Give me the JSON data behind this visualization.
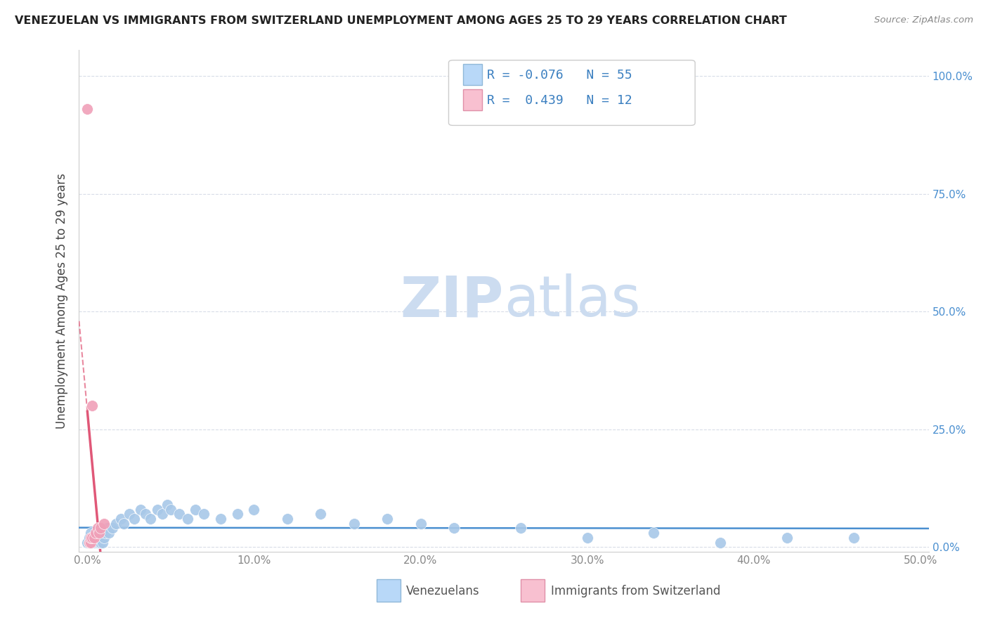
{
  "title": "VENEZUELAN VS IMMIGRANTS FROM SWITZERLAND UNEMPLOYMENT AMONG AGES 25 TO 29 YEARS CORRELATION CHART",
  "source": "Source: ZipAtlas.com",
  "ylabel": "Unemployment Among Ages 25 to 29 years",
  "xlim": [
    0.0,
    0.5
  ],
  "ylim": [
    0.0,
    1.05
  ],
  "blue_R": -0.076,
  "blue_N": 55,
  "pink_R": 0.439,
  "pink_N": 12,
  "blue_color": "#a8c8e8",
  "pink_color": "#f0a0b8",
  "blue_line_color": "#4a8fd0",
  "pink_line_color": "#e05878",
  "legend_box_blue": "#b8d8f8",
  "legend_box_pink": "#f8c0d0",
  "watermark_color": "#ccdcf0",
  "grid_color": "#d8dde8",
  "tick_color": "#888888",
  "right_tick_color": "#4a8fd0",
  "title_color": "#222222",
  "source_color": "#888888",
  "ylabel_color": "#444444",
  "blue_x": [
    0.0,
    0.001,
    0.001,
    0.002,
    0.002,
    0.003,
    0.003,
    0.004,
    0.004,
    0.005,
    0.005,
    0.006,
    0.006,
    0.007,
    0.007,
    0.008,
    0.008,
    0.009,
    0.009,
    0.01,
    0.011,
    0.012,
    0.013,
    0.015,
    0.017,
    0.02,
    0.022,
    0.025,
    0.028,
    0.032,
    0.035,
    0.038,
    0.042,
    0.045,
    0.048,
    0.05,
    0.055,
    0.06,
    0.065,
    0.07,
    0.08,
    0.09,
    0.1,
    0.12,
    0.14,
    0.16,
    0.18,
    0.2,
    0.22,
    0.26,
    0.3,
    0.34,
    0.38,
    0.42,
    0.46
  ],
  "blue_y": [
    0.01,
    0.01,
    0.02,
    0.01,
    0.03,
    0.01,
    0.02,
    0.01,
    0.02,
    0.01,
    0.02,
    0.01,
    0.02,
    0.01,
    0.03,
    0.01,
    0.02,
    0.01,
    0.03,
    0.02,
    0.03,
    0.04,
    0.03,
    0.04,
    0.05,
    0.06,
    0.05,
    0.07,
    0.06,
    0.08,
    0.07,
    0.06,
    0.08,
    0.07,
    0.09,
    0.08,
    0.07,
    0.06,
    0.08,
    0.07,
    0.06,
    0.07,
    0.08,
    0.06,
    0.07,
    0.05,
    0.06,
    0.05,
    0.04,
    0.04,
    0.02,
    0.03,
    0.01,
    0.02,
    0.02
  ],
  "pink_x": [
    0.0,
    0.001,
    0.002,
    0.002,
    0.003,
    0.003,
    0.004,
    0.005,
    0.006,
    0.007,
    0.008,
    0.01
  ],
  "pink_y": [
    0.93,
    0.01,
    0.01,
    0.02,
    0.02,
    0.3,
    0.02,
    0.03,
    0.04,
    0.03,
    0.04,
    0.05
  ]
}
